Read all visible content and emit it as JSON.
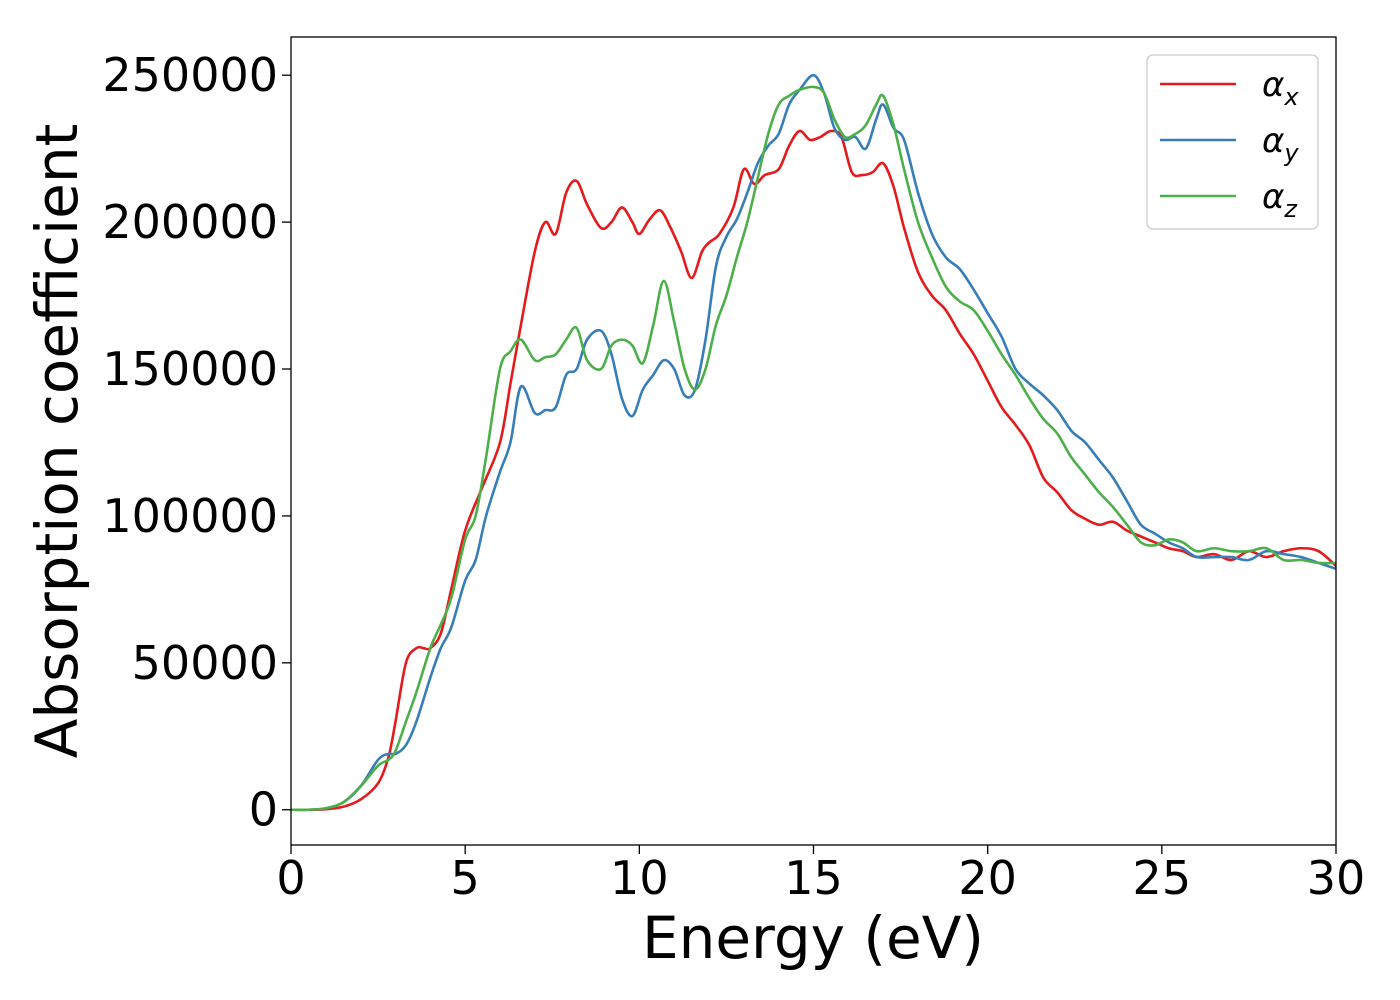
{
  "chart_data": {
    "type": "line",
    "xlabel": "Energy (eV)",
    "ylabel": "Absorption coefficient",
    "xlim": [
      0,
      30
    ],
    "ylim": [
      -12000,
      263000
    ],
    "xticks": [
      "0",
      "5",
      "10",
      "15",
      "20",
      "25",
      "30"
    ],
    "xtick_values": [
      0,
      5,
      10,
      15,
      20,
      25,
      30
    ],
    "yticks": [
      "0",
      "50000",
      "100000",
      "150000",
      "200000",
      "250000"
    ],
    "ytick_values": [
      0,
      50000,
      100000,
      150000,
      200000,
      250000
    ],
    "grid": false,
    "legend_position": "top-right",
    "series": [
      {
        "name": "αx",
        "base": "α",
        "sub": "x",
        "color": "#e41a1c",
        "x": [
          0,
          0.5,
          1.0,
          1.5,
          2.0,
          2.5,
          2.8,
          3.0,
          3.3,
          3.6,
          3.8,
          4.0,
          4.3,
          4.6,
          5.0,
          5.5,
          6.0,
          6.3,
          6.6,
          7.0,
          7.3,
          7.6,
          7.9,
          8.2,
          8.5,
          8.9,
          9.2,
          9.5,
          9.8,
          10.0,
          10.3,
          10.6,
          10.9,
          11.2,
          11.5,
          11.8,
          12.0,
          12.3,
          12.7,
          13.0,
          13.3,
          13.6,
          14.0,
          14.3,
          14.6,
          14.9,
          15.2,
          15.5,
          15.8,
          16.1,
          16.4,
          16.7,
          17.0,
          17.3,
          17.6,
          18.0,
          18.4,
          18.8,
          19.2,
          19.6,
          20.0,
          20.4,
          20.8,
          21.2,
          21.6,
          22.0,
          22.4,
          22.8,
          23.2,
          23.6,
          24.0,
          24.4,
          24.8,
          25.2,
          25.6,
          26.0,
          26.5,
          27.0,
          27.5,
          28.0,
          28.5,
          29.0,
          29.5,
          30.0
        ],
        "values": [
          0,
          0,
          200,
          1000,
          3500,
          9000,
          18000,
          30000,
          50000,
          55000,
          55000,
          55000,
          60000,
          75000,
          95000,
          110000,
          125000,
          145000,
          165000,
          190000,
          200000,
          196000,
          210000,
          214000,
          206000,
          198000,
          200000,
          205000,
          200000,
          196000,
          201000,
          204000,
          198000,
          190000,
          181000,
          190000,
          193000,
          196000,
          205000,
          218000,
          213000,
          216000,
          218000,
          226000,
          231000,
          228000,
          229000,
          231000,
          229000,
          217000,
          216000,
          217000,
          220000,
          212000,
          198000,
          183000,
          175000,
          170000,
          162000,
          155000,
          146000,
          137000,
          131000,
          124000,
          113000,
          108000,
          102000,
          99000,
          97000,
          98000,
          95000,
          93000,
          91000,
          89000,
          88000,
          86000,
          87000,
          85000,
          88000,
          86000,
          88000,
          89000,
          88000,
          83000
        ]
      },
      {
        "name": "αy",
        "base": "α",
        "sub": "y",
        "color": "#377eb8",
        "x": [
          0,
          0.5,
          1.0,
          1.5,
          2.0,
          2.5,
          2.8,
          3.0,
          3.3,
          3.6,
          4.0,
          4.3,
          4.6,
          5.0,
          5.3,
          5.6,
          6.0,
          6.3,
          6.6,
          7.0,
          7.3,
          7.6,
          7.9,
          8.2,
          8.5,
          8.9,
          9.2,
          9.5,
          9.8,
          10.1,
          10.4,
          10.7,
          11.0,
          11.3,
          11.6,
          11.9,
          12.2,
          12.5,
          12.8,
          13.1,
          13.4,
          13.7,
          14.0,
          14.3,
          14.6,
          15.0,
          15.3,
          15.6,
          15.9,
          16.2,
          16.5,
          16.8,
          17.0,
          17.3,
          17.6,
          18.0,
          18.4,
          18.8,
          19.2,
          19.6,
          20.0,
          20.4,
          20.8,
          21.2,
          21.6,
          22.0,
          22.4,
          22.8,
          23.2,
          23.6,
          24.0,
          24.4,
          24.8,
          25.2,
          25.6,
          26.0,
          26.5,
          27.0,
          27.5,
          28.0,
          28.5,
          29.0,
          29.5,
          30.0
        ],
        "values": [
          0,
          0,
          500,
          2500,
          8000,
          17000,
          19000,
          19000,
          22000,
          30000,
          45000,
          55000,
          62000,
          78000,
          85000,
          100000,
          115000,
          125000,
          144000,
          135000,
          136000,
          137000,
          148000,
          150000,
          160000,
          163000,
          155000,
          140000,
          134000,
          143000,
          148000,
          153000,
          150000,
          141000,
          143000,
          160000,
          185000,
          195000,
          201000,
          210000,
          220000,
          226000,
          230000,
          240000,
          245000,
          250000,
          244000,
          232000,
          228000,
          229000,
          225000,
          235000,
          240000,
          232000,
          228000,
          210000,
          196000,
          188000,
          184000,
          177000,
          169000,
          161000,
          150000,
          145000,
          141000,
          136000,
          129000,
          125000,
          119000,
          113000,
          105000,
          97000,
          94000,
          91000,
          89000,
          86000,
          86000,
          86000,
          85000,
          88000,
          87000,
          86000,
          84000,
          82000
        ]
      },
      {
        "name": "αz",
        "base": "α",
        "sub": "z",
        "color": "#4daf4a",
        "x": [
          0,
          0.5,
          1.0,
          1.5,
          2.0,
          2.5,
          2.8,
          3.0,
          3.3,
          3.6,
          4.0,
          4.3,
          4.6,
          5.0,
          5.3,
          5.6,
          6.0,
          6.3,
          6.6,
          7.0,
          7.3,
          7.6,
          7.9,
          8.2,
          8.5,
          8.9,
          9.2,
          9.5,
          9.8,
          10.1,
          10.4,
          10.7,
          11.0,
          11.3,
          11.6,
          11.9,
          12.2,
          12.5,
          12.8,
          13.1,
          13.4,
          13.7,
          14.0,
          14.3,
          14.6,
          15.0,
          15.3,
          15.6,
          15.9,
          16.2,
          16.5,
          16.8,
          17.0,
          17.3,
          17.6,
          18.0,
          18.4,
          18.8,
          19.2,
          19.6,
          20.0,
          20.4,
          20.8,
          21.2,
          21.6,
          22.0,
          22.4,
          22.8,
          23.2,
          23.6,
          24.0,
          24.4,
          24.8,
          25.2,
          25.6,
          26.0,
          26.5,
          27.0,
          27.5,
          28.0,
          28.5,
          29.0,
          29.5,
          30.0
        ],
        "values": [
          0,
          0,
          500,
          2500,
          8000,
          15000,
          17000,
          20000,
          30000,
          40000,
          55000,
          63000,
          72000,
          92000,
          100000,
          120000,
          150000,
          156000,
          160000,
          153000,
          154000,
          155000,
          160000,
          164000,
          153000,
          150000,
          158000,
          160000,
          158000,
          152000,
          165000,
          180000,
          166000,
          150000,
          143000,
          150000,
          165000,
          175000,
          188000,
          200000,
          215000,
          230000,
          240000,
          243000,
          245000,
          246000,
          244000,
          235000,
          229000,
          230000,
          233000,
          240000,
          243000,
          233000,
          218000,
          200000,
          188000,
          178000,
          173000,
          170000,
          163000,
          155000,
          148000,
          140000,
          133000,
          128000,
          120000,
          114000,
          108000,
          103000,
          97000,
          91000,
          90000,
          92000,
          91000,
          88000,
          89000,
          88000,
          88000,
          89000,
          85000,
          85000,
          84000,
          84000
        ]
      }
    ]
  }
}
